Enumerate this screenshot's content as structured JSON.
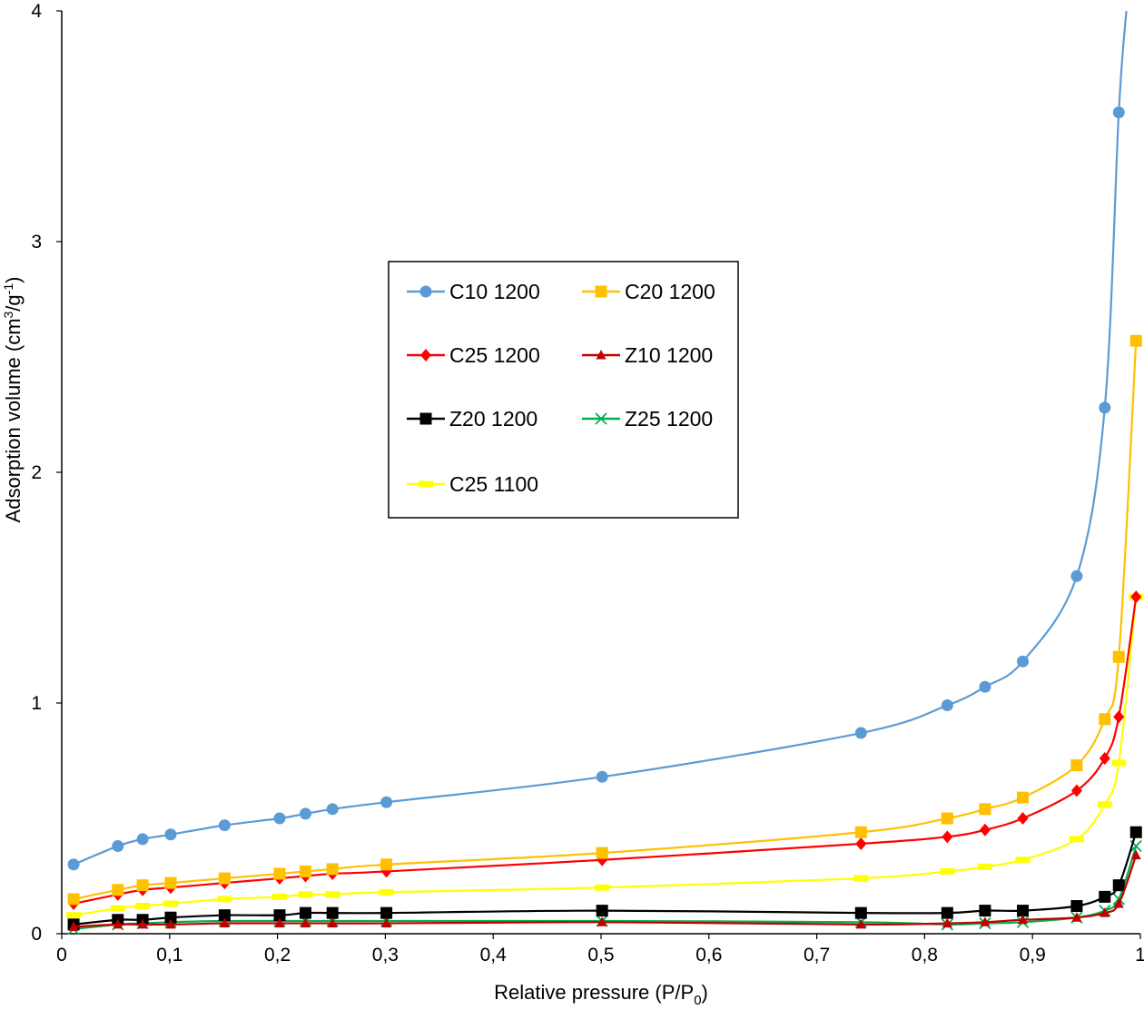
{
  "chart_data": {
    "type": "line",
    "xlabel": "Relative pressure (P/P0)",
    "ylabel": "Adsorption volume (cm3/g-1)",
    "xlim": [
      0,
      1
    ],
    "ylim": [
      0,
      4
    ],
    "x_ticks": [
      "0",
      "0,1",
      "0,2",
      "0,3",
      "0,4",
      "0,5",
      "0,6",
      "0,7",
      "0,8",
      "0,9",
      "1"
    ],
    "y_ticks": [
      "0",
      "1",
      "2",
      "3",
      "4"
    ],
    "grid": false,
    "legend_position": "center-left",
    "series": [
      {
        "name": "C10 1200",
        "color": "#5b9bd5",
        "marker": "circle",
        "points": [
          [
            0.011,
            0.3
          ],
          [
            0.052,
            0.38
          ],
          [
            0.075,
            0.41
          ],
          [
            0.101,
            0.43
          ],
          [
            0.151,
            0.47
          ],
          [
            0.202,
            0.5
          ],
          [
            0.226,
            0.52
          ],
          [
            0.251,
            0.54
          ],
          [
            0.301,
            0.57
          ],
          [
            0.501,
            0.68
          ],
          [
            0.741,
            0.87
          ],
          [
            0.821,
            0.99
          ],
          [
            0.856,
            1.07
          ],
          [
            0.891,
            1.18
          ],
          [
            0.941,
            1.55
          ],
          [
            0.967,
            2.28
          ],
          [
            0.98,
            3.56
          ],
          [
            0.987,
            4.0
          ]
        ]
      },
      {
        "name": "C20 1200",
        "color": "#ffc000",
        "marker": "square",
        "points": [
          [
            0.011,
            0.15
          ],
          [
            0.052,
            0.19
          ],
          [
            0.075,
            0.21
          ],
          [
            0.101,
            0.22
          ],
          [
            0.151,
            0.24
          ],
          [
            0.202,
            0.26
          ],
          [
            0.226,
            0.27
          ],
          [
            0.251,
            0.28
          ],
          [
            0.301,
            0.3
          ],
          [
            0.501,
            0.35
          ],
          [
            0.741,
            0.44
          ],
          [
            0.821,
            0.5
          ],
          [
            0.856,
            0.54
          ],
          [
            0.891,
            0.59
          ],
          [
            0.941,
            0.73
          ],
          [
            0.967,
            0.93
          ],
          [
            0.98,
            1.2
          ],
          [
            0.996,
            2.57
          ]
        ]
      },
      {
        "name": "C25 1200",
        "color": "#ff0000",
        "marker": "diamond",
        "points": [
          [
            0.011,
            0.13
          ],
          [
            0.052,
            0.17
          ],
          [
            0.075,
            0.19
          ],
          [
            0.101,
            0.2
          ],
          [
            0.151,
            0.22
          ],
          [
            0.202,
            0.24
          ],
          [
            0.226,
            0.25
          ],
          [
            0.251,
            0.26
          ],
          [
            0.301,
            0.27
          ],
          [
            0.501,
            0.32
          ],
          [
            0.741,
            0.39
          ],
          [
            0.821,
            0.42
          ],
          [
            0.856,
            0.45
          ],
          [
            0.891,
            0.5
          ],
          [
            0.941,
            0.62
          ],
          [
            0.967,
            0.76
          ],
          [
            0.98,
            0.94
          ],
          [
            0.996,
            1.46
          ]
        ]
      },
      {
        "name": "Z10 1200",
        "color": "#c00000",
        "marker": "triangle",
        "points": [
          [
            0.011,
            0.03
          ],
          [
            0.052,
            0.04
          ],
          [
            0.075,
            0.04
          ],
          [
            0.101,
            0.04
          ],
          [
            0.151,
            0.045
          ],
          [
            0.202,
            0.045
          ],
          [
            0.226,
            0.045
          ],
          [
            0.251,
            0.045
          ],
          [
            0.301,
            0.045
          ],
          [
            0.501,
            0.05
          ],
          [
            0.741,
            0.04
          ],
          [
            0.821,
            0.045
          ],
          [
            0.856,
            0.05
          ],
          [
            0.891,
            0.06
          ],
          [
            0.941,
            0.07
          ],
          [
            0.967,
            0.09
          ],
          [
            0.98,
            0.13
          ],
          [
            0.996,
            0.34
          ]
        ]
      },
      {
        "name": "Z20 1200",
        "color": "#000000",
        "marker": "square",
        "points": [
          [
            0.011,
            0.04
          ],
          [
            0.052,
            0.06
          ],
          [
            0.075,
            0.06
          ],
          [
            0.101,
            0.07
          ],
          [
            0.151,
            0.08
          ],
          [
            0.202,
            0.08
          ],
          [
            0.226,
            0.09
          ],
          [
            0.251,
            0.09
          ],
          [
            0.301,
            0.09
          ],
          [
            0.501,
            0.1
          ],
          [
            0.741,
            0.09
          ],
          [
            0.821,
            0.09
          ],
          [
            0.856,
            0.1
          ],
          [
            0.891,
            0.1
          ],
          [
            0.941,
            0.12
          ],
          [
            0.967,
            0.16
          ],
          [
            0.98,
            0.21
          ],
          [
            0.996,
            0.44
          ]
        ]
      },
      {
        "name": "Z25 1200",
        "color": "#00b050",
        "marker": "x",
        "points": [
          [
            0.011,
            0.02
          ],
          [
            0.052,
            0.04
          ],
          [
            0.075,
            0.045
          ],
          [
            0.101,
            0.05
          ],
          [
            0.151,
            0.055
          ],
          [
            0.202,
            0.055
          ],
          [
            0.226,
            0.055
          ],
          [
            0.251,
            0.055
          ],
          [
            0.301,
            0.055
          ],
          [
            0.501,
            0.055
          ],
          [
            0.741,
            0.05
          ],
          [
            0.821,
            0.04
          ],
          [
            0.856,
            0.045
          ],
          [
            0.891,
            0.05
          ],
          [
            0.941,
            0.07
          ],
          [
            0.967,
            0.1
          ],
          [
            0.98,
            0.15
          ],
          [
            0.996,
            0.38
          ]
        ]
      },
      {
        "name": "C25 1100",
        "color": "#ffff00",
        "marker": "dash",
        "points": [
          [
            0.011,
            0.08
          ],
          [
            0.052,
            0.11
          ],
          [
            0.075,
            0.12
          ],
          [
            0.101,
            0.13
          ],
          [
            0.151,
            0.15
          ],
          [
            0.202,
            0.16
          ],
          [
            0.226,
            0.17
          ],
          [
            0.251,
            0.17
          ],
          [
            0.301,
            0.18
          ],
          [
            0.501,
            0.2
          ],
          [
            0.741,
            0.24
          ],
          [
            0.821,
            0.27
          ],
          [
            0.856,
            0.29
          ],
          [
            0.891,
            0.32
          ],
          [
            0.941,
            0.41
          ],
          [
            0.967,
            0.56
          ],
          [
            0.98,
            0.74
          ],
          [
            0.996,
            1.46
          ]
        ]
      }
    ]
  }
}
